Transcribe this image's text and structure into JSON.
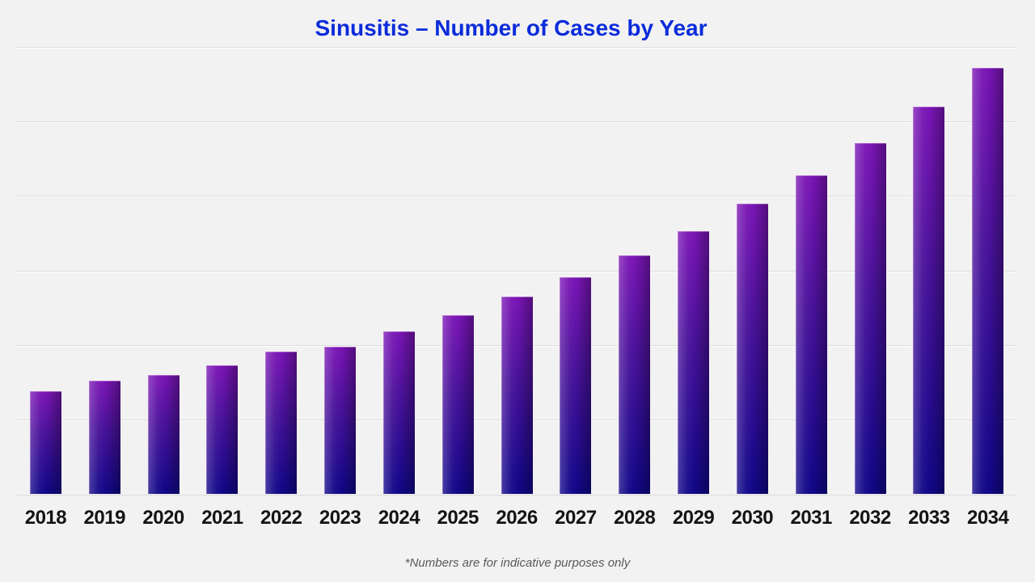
{
  "title": "Sinusitis – Number of Cases by Year",
  "footnote": "*Numbers are for indicative purposes only",
  "colors": {
    "background": "#f2f2f2",
    "title_color": "#0b2cdb",
    "gridline": "#dcdcdc",
    "bar_top": "#7a15b5",
    "bar_mid": "#49129a",
    "bar_bottom": "#100788",
    "label_color": "#141414",
    "footnote_color": "#595959"
  },
  "chart_data": {
    "type": "bar",
    "title": "Sinusitis – Number of Cases by Year",
    "categories": [
      "2018",
      "2019",
      "2020",
      "2021",
      "2022",
      "2023",
      "2024",
      "2025",
      "2026",
      "2027",
      "2028",
      "2029",
      "2030",
      "2031",
      "2032",
      "2033",
      "2034"
    ],
    "values": [
      1.38,
      1.52,
      1.59,
      1.73,
      1.91,
      1.98,
      2.18,
      2.4,
      2.65,
      2.91,
      3.2,
      3.53,
      3.9,
      4.28,
      4.71,
      5.2,
      5.72
    ],
    "xlabel": "",
    "ylabel": "",
    "ylim": [
      0,
      6
    ],
    "grid": true,
    "gridline_interval": 1,
    "y_tick_labels_visible": false,
    "legend": false,
    "footnote": "*Numbers are for indicative purposes only"
  }
}
